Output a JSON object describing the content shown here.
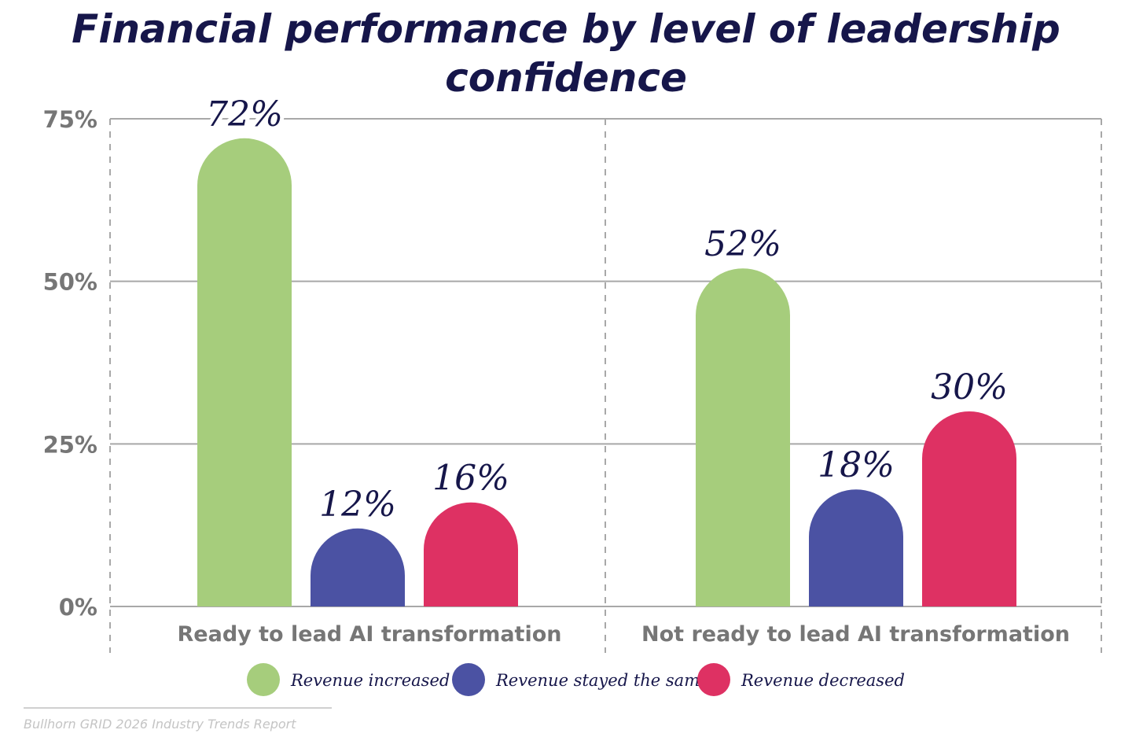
{
  "chart_data": {
    "type": "bar",
    "title": "Financial performance by level of leadership confidence",
    "categories": [
      "Ready to lead AI transformation",
      "Not ready to lead AI transformation"
    ],
    "series": [
      {
        "name": "Revenue increased",
        "values": [
          72,
          52
        ],
        "color": "#a6cd7c"
      },
      {
        "name": "Revenue stayed the same",
        "values": [
          12,
          18
        ],
        "color": "#4b52a3"
      },
      {
        "name": "Revenue decreased",
        "values": [
          16,
          30
        ],
        "color": "#de3163"
      }
    ],
    "data_labels": [
      [
        "72%",
        "52%"
      ],
      [
        "12%",
        "18%"
      ],
      [
        "16%",
        "30%"
      ]
    ],
    "yticks": [
      "0%",
      "25%",
      "50%",
      "75%"
    ],
    "ytick_values": [
      0,
      25,
      50,
      75
    ],
    "ylim": [
      0,
      75
    ],
    "grid": true,
    "legend": "bottom"
  },
  "source": "Bullhorn GRID 2026 Industry Trends Report"
}
